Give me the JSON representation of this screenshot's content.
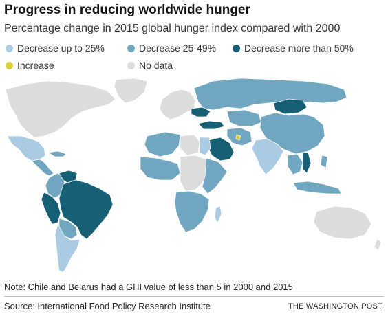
{
  "header": {
    "title": "Progress in reducing worldwide hunger",
    "subtitle": "Percentage change in 2015 global hunger index compared with 2000"
  },
  "legend": {
    "items": [
      {
        "label": "Decrease up to 25%",
        "color": "#a9cce2"
      },
      {
        "label": "Decrease 25-49%",
        "color": "#71a6c0"
      },
      {
        "label": "Decrease more than 50%",
        "color": "#175f75"
      },
      {
        "label": "Increase",
        "color": "#d9cd3b"
      },
      {
        "label": "No data",
        "color": "#dcdcdc"
      }
    ]
  },
  "map": {
    "background": "#ffffff",
    "regions": [
      {
        "region": "North America",
        "category": "No data"
      },
      {
        "region": "Mexico",
        "category": "Decrease up to 25%"
      },
      {
        "region": "Central America & Caribbean",
        "category": "Decrease 25-49%"
      },
      {
        "region": "Venezuela",
        "category": "Decrease more than 50%"
      },
      {
        "region": "Colombia",
        "category": "Decrease 25-49%"
      },
      {
        "region": "Peru",
        "category": "Decrease more than 50%"
      },
      {
        "region": "Brazil",
        "category": "Decrease more than 50%"
      },
      {
        "region": "Bolivia",
        "category": "Decrease 25-49%"
      },
      {
        "region": "Argentina & Chile",
        "category": "Decrease up to 25%"
      },
      {
        "region": "Greenland",
        "category": "No data"
      },
      {
        "region": "Europe",
        "category": "No data"
      },
      {
        "region": "Russia",
        "category": "Decrease 25-49%"
      },
      {
        "region": "Ukraine",
        "category": "Decrease more than 50%"
      },
      {
        "region": "Turkey",
        "category": "Decrease more than 50%"
      },
      {
        "region": "Mongolia",
        "category": "Decrease more than 50%"
      },
      {
        "region": "China",
        "category": "Decrease 25-49%"
      },
      {
        "region": "Central Asia",
        "category": "Decrease 25-49%"
      },
      {
        "region": "Iran",
        "category": "Decrease 25-49%"
      },
      {
        "region": "Saudi Arabia",
        "category": "Decrease more than 50%"
      },
      {
        "region": "Yemen",
        "category": "Increase"
      },
      {
        "region": "India",
        "category": "Decrease up to 25%"
      },
      {
        "region": "Southeast Asia",
        "category": "Decrease 25-49%"
      },
      {
        "region": "Vietnam",
        "category": "Decrease more than 50%"
      },
      {
        "region": "Indonesia",
        "category": "Decrease 25-49%"
      },
      {
        "region": "North Africa",
        "category": "Decrease 25-49%"
      },
      {
        "region": "Libya",
        "category": "No data"
      },
      {
        "region": "Egypt",
        "category": "Decrease up to 25%"
      },
      {
        "region": "West Africa",
        "category": "Decrease 25-49%"
      },
      {
        "region": "Central Africa",
        "category": "No data"
      },
      {
        "region": "East Africa",
        "category": "Decrease 25-49%"
      },
      {
        "region": "Southern Africa",
        "category": "Decrease 25-49%"
      },
      {
        "region": "Madagascar",
        "category": "Decrease up to 25%"
      },
      {
        "region": "Australia",
        "category": "No data"
      }
    ]
  },
  "footer": {
    "note": "Note: Chile and Belarus had a GHI value of less than 5 in 2000 and 2015",
    "source": "Source: International Food Policy Research Institute",
    "credit": "THE WASHINGTON POST"
  }
}
